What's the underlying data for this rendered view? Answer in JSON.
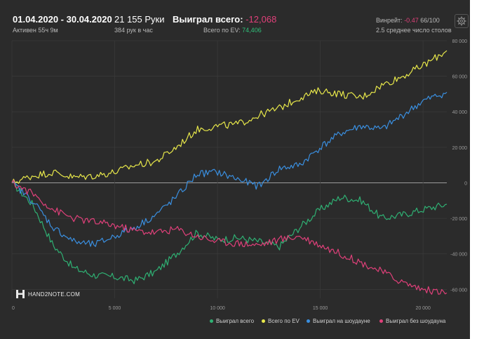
{
  "header": {
    "date_range": "01.04.2020 - 30.04.2020",
    "active": "Активен 55ч 9м",
    "hands": "21 155 Руки",
    "hands_per_hour": "384 рук в час",
    "won_label": "Выиграл всего:",
    "won_value": "-12,068",
    "ev_label": "Всего по EV:",
    "ev_value": "74,406",
    "winrate_label": "Винрейт:",
    "winrate_value": "-0.47",
    "winrate_unit": "66/100",
    "tables": "2.5 среднее число столов"
  },
  "logo": {
    "text": "HAND2NOTE.COM"
  },
  "colors": {
    "background": "#2b2b2b",
    "won_total": "#2fb073",
    "ev_total": "#e8e84a",
    "showdown": "#3a8fe0",
    "no_showdown": "#e0407a",
    "negative": "#e0407a",
    "positive": "#2fc07a"
  },
  "chart_data": {
    "type": "line",
    "xlim": [
      0,
      21155
    ],
    "ylim": [
      -65000,
      80000
    ],
    "x_ticks": [
      0,
      5000,
      10000,
      15000,
      20000
    ],
    "x_tick_labels": [
      "0",
      "5 000",
      "10 000",
      "15 000",
      "20 000"
    ],
    "y_ticks": [
      80000,
      60000,
      40000,
      20000,
      0,
      -20000,
      -40000,
      -60000
    ],
    "y_tick_labels": [
      "80 000",
      "60 000",
      "40 000",
      "20 000",
      "0",
      "-20 000",
      "-40 000",
      "-60 000"
    ],
    "grid": true,
    "legend_position": "bottom",
    "x": [
      0,
      1000,
      2000,
      3000,
      4000,
      5000,
      6000,
      7000,
      8000,
      9000,
      10000,
      11000,
      12000,
      13000,
      14000,
      15000,
      16000,
      17000,
      18000,
      19000,
      20000,
      21155
    ],
    "series": [
      {
        "name": "Выиграл всего",
        "color": "#2fb073",
        "values": [
          0,
          -12000,
          -35000,
          -48000,
          -52000,
          -53000,
          -55000,
          -50000,
          -40000,
          -28000,
          -32000,
          -31000,
          -33000,
          -36000,
          -25000,
          -15000,
          -8000,
          -10000,
          -20000,
          -18000,
          -15000,
          -12068
        ]
      },
      {
        "name": "Всего по EV",
        "color": "#e8e84a",
        "values": [
          0,
          4000,
          6000,
          3000,
          4000,
          6000,
          10000,
          12000,
          20000,
          30000,
          32000,
          33000,
          38000,
          42000,
          48000,
          52000,
          50000,
          48000,
          55000,
          60000,
          66000,
          74406
        ]
      },
      {
        "name": "Выиграл на шоудауне",
        "color": "#3a8fe0",
        "values": [
          0,
          -10000,
          -25000,
          -33000,
          -35000,
          -30000,
          -25000,
          -18000,
          -8000,
          5000,
          6000,
          2000,
          -2000,
          8000,
          10000,
          20000,
          28000,
          32000,
          30000,
          38000,
          46000,
          51000
        ]
      },
      {
        "name": "Выиграл без шоудауна",
        "color": "#e0407a",
        "values": [
          0,
          -6000,
          -15000,
          -20000,
          -22000,
          -24000,
          -27000,
          -28000,
          -26000,
          -30000,
          -33000,
          -34000,
          -35000,
          -32000,
          -30000,
          -35000,
          -40000,
          -45000,
          -50000,
          -56000,
          -60000,
          -62000
        ]
      }
    ]
  }
}
